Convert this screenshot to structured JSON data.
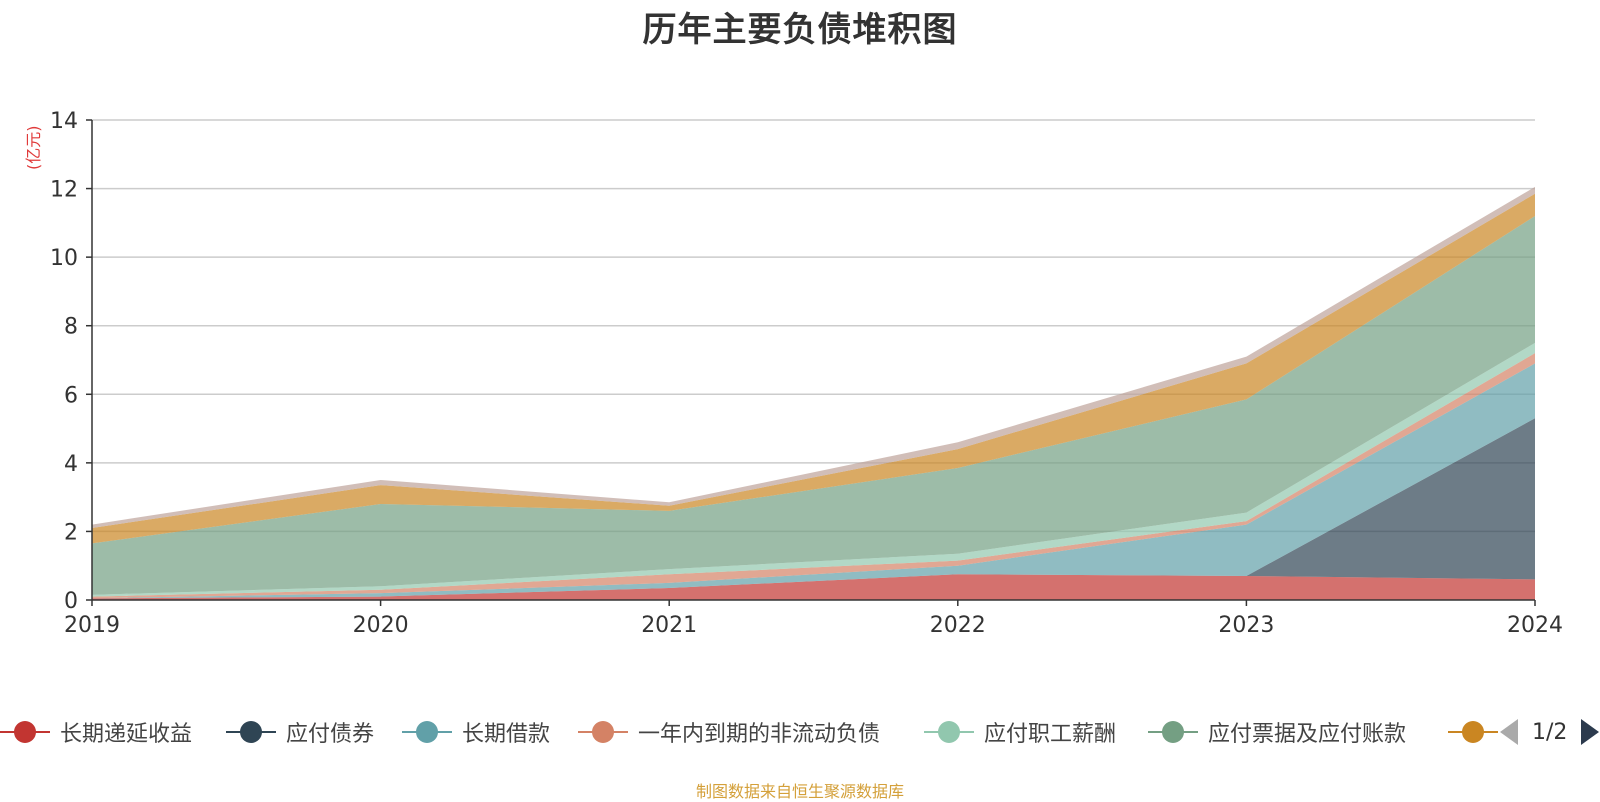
{
  "chart_data": {
    "type": "area",
    "title": "历年主要负债堆积图",
    "unit_label": "(亿元)",
    "stacked": true,
    "x": [
      "2019",
      "2020",
      "2021",
      "2022",
      "2023",
      "2024"
    ],
    "ylim": [
      0,
      14
    ],
    "yticks": [
      0,
      2,
      4,
      6,
      8,
      10,
      12,
      14
    ],
    "grid": true,
    "legend_position": "bottom",
    "series": [
      {
        "name": "长期递延收益",
        "color": "#c23531",
        "values": [
          0.05,
          0.1,
          0.35,
          0.75,
          0.7,
          0.6
        ]
      },
      {
        "name": "应付债券",
        "color": "#2f4554",
        "values": [
          0,
          0,
          0,
          0,
          0,
          4.7
        ]
      },
      {
        "name": "长期借款",
        "color": "#61a0a8",
        "values": [
          0,
          0.1,
          0.15,
          0.25,
          1.5,
          1.6
        ]
      },
      {
        "name": "一年内到期的非流动负债",
        "color": "#d48265",
        "values": [
          0.05,
          0.1,
          0.25,
          0.15,
          0.1,
          0.3
        ]
      },
      {
        "name": "应付职工薪酬",
        "color": "#91c7ae",
        "values": [
          0.05,
          0.1,
          0.15,
          0.2,
          0.25,
          0.3
        ]
      },
      {
        "name": "应付票据及应付账款",
        "color": "#749f83",
        "values": [
          1.5,
          2.4,
          1.7,
          2.5,
          3.3,
          3.7
        ]
      },
      {
        "name": "",
        "color": "#ca8622",
        "values": [
          0.45,
          0.55,
          0.15,
          0.55,
          1.05,
          0.65
        ]
      },
      {
        "name": "",
        "color": "#bda29a",
        "values": [
          0.1,
          0.15,
          0.1,
          0.2,
          0.2,
          0.2
        ]
      }
    ]
  },
  "legend": {
    "page_indicator": "1/2"
  },
  "source": "制图数据来自恒生聚源数据库"
}
